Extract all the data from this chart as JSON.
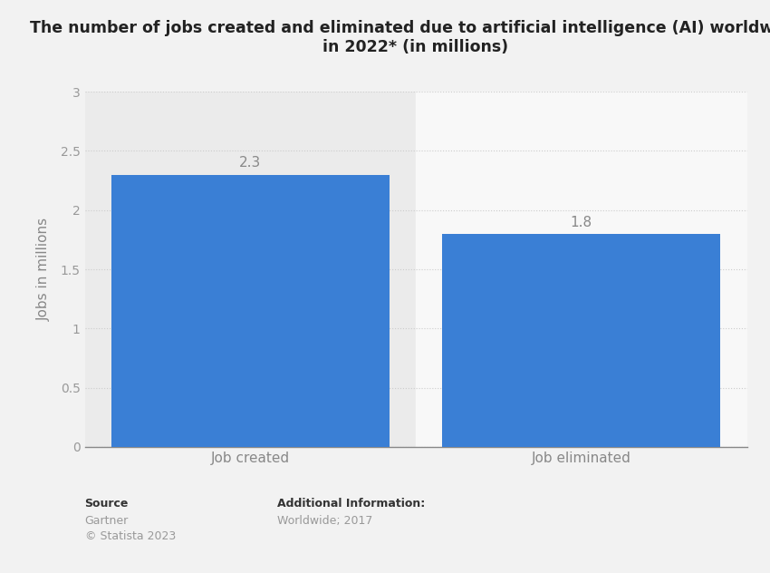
{
  "title_line1": "The number of jobs created and eliminated due to artificial intelligence (AI) worldwide",
  "title_line2": "in 2022* (in millions)",
  "categories": [
    "Job created",
    "Job eliminated"
  ],
  "values": [
    2.3,
    1.8
  ],
  "bar_color": "#3a7fd5",
  "ylabel": "Jobs in millions",
  "ylim": [
    0,
    3
  ],
  "yticks": [
    0,
    0.5,
    1,
    1.5,
    2,
    2.5,
    3
  ],
  "bar_width": 0.42,
  "background_color": "#f2f2f2",
  "plot_bg_left": "#ebebeb",
  "plot_bg_right": "#f8f8f8",
  "source_label": "Source",
  "source_text1": "Gartner",
  "source_text2": "© Statista 2023",
  "additional_label": "Additional Information:",
  "additional_text": "Worldwide; 2017",
  "title_fontsize": 12.5,
  "label_fontsize": 11,
  "value_label_fontsize": 11,
  "grid_color": "#cccccc",
  "tick_color": "#999999",
  "axis_label_color": "#888888",
  "bar_positions": [
    0.25,
    0.75
  ]
}
